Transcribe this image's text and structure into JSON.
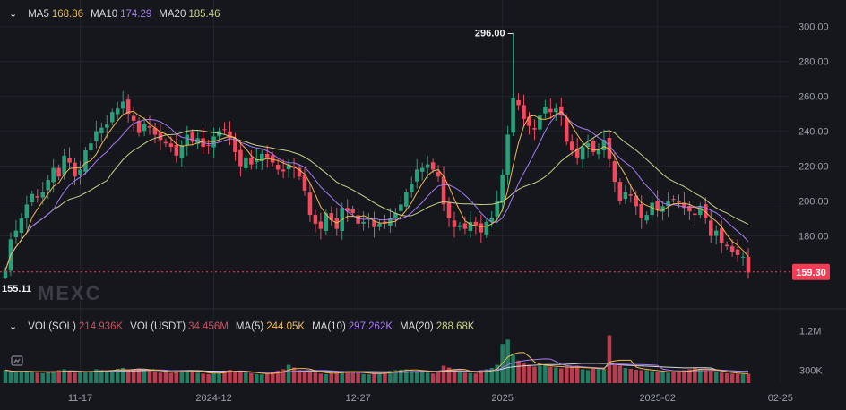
{
  "colors": {
    "background": "#15171c",
    "up": "#26a17a",
    "down": "#f2495f",
    "ma5": "#f0b84d",
    "ma10": "#a77bf3",
    "ma20": "#c7d18a",
    "grid": "#22252c",
    "axis_text": "#9aa0a6",
    "last_price_bg": "#f23d55",
    "vol_ma5": "#f0b84d",
    "vol_ma10": "#a77bf3",
    "vol_ma20": "#d9d9d9"
  },
  "legend": {
    "ma5_label": "MA5",
    "ma5_value": "168.86",
    "ma10_label": "MA10",
    "ma10_value": "174.29",
    "ma20_label": "MA20",
    "ma20_value": "185.46"
  },
  "vol_legend": {
    "vol_sol_label": "VOL(SOL)",
    "vol_sol_value": "214.936K",
    "vol_usdt_label": "VOL(USDT)",
    "vol_usdt_value": "34.456M",
    "ma5_label": "MA(5)",
    "ma5_value": "244.05K",
    "ma10_label": "MA(10)",
    "ma10_value": "297.262K",
    "ma20_label": "MA(20)",
    "ma20_value": "288.68K"
  },
  "watermark": "MEXC",
  "annotations": {
    "high": "296.00",
    "low": "155.11"
  },
  "last_price": "159.30",
  "chart_data": {
    "type": "candlestick",
    "y_axis_ticks": [
      "300.00",
      "280.00",
      "260.00",
      "240.00",
      "220.00",
      "200.00",
      "180.00"
    ],
    "y_axis_values": [
      300,
      280,
      260,
      240,
      220,
      200,
      180
    ],
    "ylim": [
      152,
      305
    ],
    "volume_axis_ticks": [
      "1.2M",
      "300K"
    ],
    "volume_axis_values": [
      1200000,
      300000
    ],
    "volume_ylim": [
      0,
      1500000
    ],
    "x_axis_ticks": [
      "11-17",
      "2024-12",
      "12-27",
      "2025",
      "2025-02",
      "02-25"
    ],
    "x_axis_tick_index": [
      14,
      39,
      66,
      93,
      122,
      145
    ],
    "close": [
      160,
      178,
      183,
      190,
      198,
      204,
      202,
      205,
      212,
      219,
      214,
      226,
      222,
      214,
      218,
      229,
      233,
      240,
      242,
      244,
      251,
      253,
      257,
      250,
      246,
      239,
      244,
      242,
      238,
      235,
      233,
      231,
      226,
      232,
      238,
      234,
      236,
      231,
      232,
      237,
      240,
      241,
      236,
      228,
      220,
      225,
      221,
      224,
      227,
      225,
      222,
      218,
      217,
      221,
      219,
      214,
      206,
      192,
      187,
      184,
      193,
      189,
      184,
      196,
      194,
      193,
      187,
      188,
      190,
      185,
      187,
      187,
      190,
      193,
      198,
      205,
      210,
      218,
      219,
      221,
      218,
      214,
      198,
      190,
      185,
      186,
      184,
      188,
      186,
      182,
      188,
      190,
      200,
      215,
      238,
      259,
      255,
      247,
      243,
      241,
      249,
      254,
      251,
      253,
      249,
      234,
      229,
      225,
      231,
      233,
      228,
      229,
      235,
      224,
      211,
      200,
      205,
      203,
      197,
      190,
      192,
      199,
      195,
      197,
      200,
      201,
      199,
      196,
      194,
      192,
      197,
      190,
      180,
      183,
      176,
      174,
      171,
      169,
      168,
      159
    ],
    "volume": [
      300000,
      260000,
      250000,
      270000,
      280000,
      260000,
      240000,
      230000,
      250000,
      280000,
      300000,
      320000,
      260000,
      240000,
      250000,
      270000,
      280000,
      320000,
      300000,
      260000,
      300000,
      330000,
      350000,
      290000,
      310000,
      340000,
      330000,
      280000,
      260000,
      240000,
      250000,
      230000,
      280000,
      300000,
      280000,
      260000,
      240000,
      220000,
      210000,
      230000,
      260000,
      290000,
      310000,
      280000,
      260000,
      240000,
      230000,
      210000,
      200000,
      220000,
      260000,
      290000,
      320000,
      420000,
      360000,
      300000,
      280000,
      250000,
      240000,
      220000,
      210000,
      230000,
      260000,
      280000,
      270000,
      250000,
      230000,
      210000,
      200000,
      220000,
      240000,
      260000,
      280000,
      300000,
      310000,
      320000,
      300000,
      280000,
      260000,
      240000,
      220000,
      280000,
      400000,
      360000,
      300000,
      260000,
      240000,
      230000,
      220000,
      300000,
      320000,
      350000,
      420000,
      900000,
      1000000,
      650000,
      520000,
      450000,
      420000,
      380000,
      400000,
      420000,
      380000,
      360000,
      340000,
      360000,
      380000,
      400000,
      320000,
      300000,
      330000,
      350000,
      330000,
      1100000,
      450000,
      400000,
      350000,
      330000,
      310000,
      300000,
      300000,
      280000,
      260000,
      250000,
      240000,
      260000,
      280000,
      300000,
      320000,
      360000,
      330000,
      300000,
      280000,
      260000,
      240000,
      230000,
      220000,
      215000,
      210000,
      215000
    ]
  }
}
